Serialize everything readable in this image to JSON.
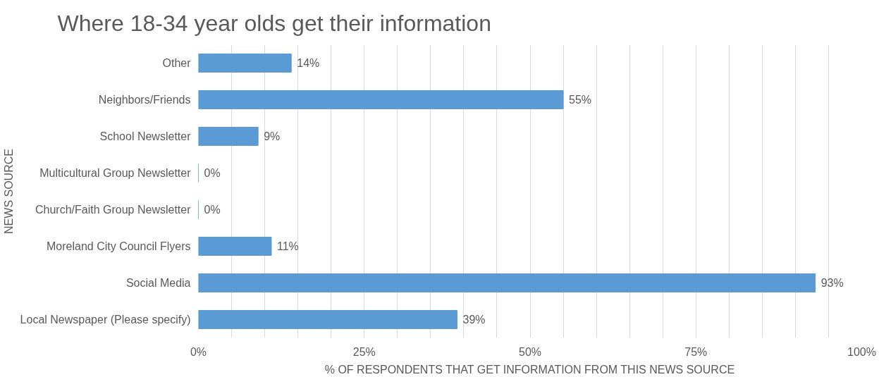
{
  "chart_data": {
    "type": "bar",
    "orientation": "horizontal",
    "title": "Where 18-34 year olds get their information",
    "xlabel": "% OF RESPONDENTS THAT GET INFORMATION FROM THIS NEWS SOURCE",
    "ylabel": "NEWS SOURCE",
    "categories": [
      "Other",
      "Neighbors/Friends",
      "School Newsletter",
      "Multicultural Group Newsletter",
      "Church/Faith Group Newsletter",
      "Moreland City Council Flyers",
      "Social Media",
      "Local Newspaper (Please specify)"
    ],
    "values": [
      14,
      55,
      9,
      0,
      0,
      11,
      93,
      39
    ],
    "value_labels": [
      "14%",
      "55%",
      "9%",
      "0%",
      "0%",
      "11%",
      "93%",
      "39%"
    ],
    "color": "#5b9bd5",
    "xlim": [
      0,
      100
    ],
    "xticks": [
      {
        "value": 0,
        "label": "0%"
      },
      {
        "value": 5,
        "label": null
      },
      {
        "value": 10,
        "label": null
      },
      {
        "value": 15,
        "label": null
      },
      {
        "value": 20,
        "label": null
      },
      {
        "value": 25,
        "label": "25%"
      },
      {
        "value": 30,
        "label": null
      },
      {
        "value": 35,
        "label": null
      },
      {
        "value": 40,
        "label": null
      },
      {
        "value": 45,
        "label": null
      },
      {
        "value": 50,
        "label": "50%"
      },
      {
        "value": 55,
        "label": null
      },
      {
        "value": 60,
        "label": null
      },
      {
        "value": 65,
        "label": null
      },
      {
        "value": 70,
        "label": null
      },
      {
        "value": 75,
        "label": "75%"
      },
      {
        "value": 80,
        "label": null
      },
      {
        "value": 85,
        "label": null
      },
      {
        "value": 90,
        "label": null
      },
      {
        "value": 95,
        "label": null
      },
      {
        "value": 100,
        "label": "100%"
      }
    ],
    "grid": "x"
  }
}
